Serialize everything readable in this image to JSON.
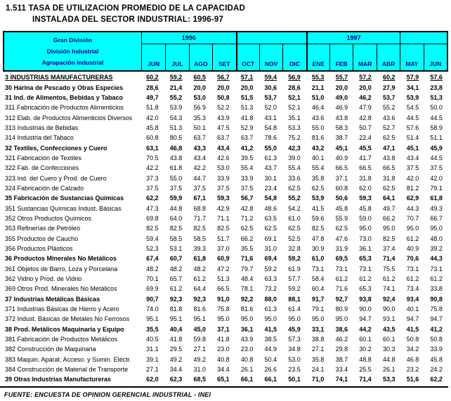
{
  "title": {
    "line1": "1.511 TASA DE UTILIZACION PROMEDIO DE LA CAPACIDAD",
    "line2": "INSTALADA DEL SECTOR INDUSTRIAL: 1996-97"
  },
  "header": {
    "stub_lines": [
      "Gran División",
      "División Industrial",
      "Agrupación Industrial"
    ],
    "year_1996": "1996",
    "year_1997": "1997",
    "months": [
      "JUN",
      "JUL",
      "AGO",
      "SET",
      "OCT",
      "NOV",
      "DIC",
      "ENE",
      "FEB",
      "MAR",
      "ABR",
      "MAY",
      "JUN"
    ]
  },
  "colors": {
    "header_bg": "#00FFFF",
    "header_text": "#000080",
    "body_text": "#000000"
  },
  "footer": {
    "source": "FUENTE: ENCUESTA DE OPINION GERENCIAL INDUSTRIAL - INEI"
  },
  "chart_data": {
    "type": "table",
    "title": "1.511 TASA DE UTILIZACION PROMEDIO DE LA CAPACIDAD INSTALADA DEL SECTOR INDUSTRIAL: 1996-97",
    "column_groups": [
      {
        "label": "1996",
        "cols": 7
      },
      {
        "label": "1997",
        "cols": 6
      }
    ],
    "columns": [
      "JUN",
      "JUL",
      "AGO",
      "SET",
      "OCT",
      "NOV",
      "DIC",
      "ENE",
      "FEB",
      "MAR",
      "ABR",
      "MAY",
      "JUN"
    ],
    "rows": [
      {
        "label": "3 INDUSTRIAS MANUFACTURERAS",
        "bold": true,
        "underline": true,
        "values": [
          "60,2",
          "59,2",
          "60,5",
          "56,7",
          "57,1",
          "59,4",
          "56,9",
          "55,3",
          "55,7",
          "57,2",
          "60,2",
          "57,9",
          "57,6"
        ]
      },
      {
        "label": "30 Harina de Pescado y Otras Especies",
        "bold": true,
        "values": [
          "28,6",
          "21,4",
          "20,0",
          "20,0",
          "20,0",
          "30,6",
          "28,6",
          "21,1",
          "20,0",
          "20,0",
          "27,9",
          "34,1",
          "23,8"
        ]
      },
      {
        "label": "31 Ind. de Alimentos, Bebidas y Tabaco",
        "bold": true,
        "values": [
          "49,7",
          "55,2",
          "53,0",
          "50,8",
          "51,5",
          "53,7",
          "52,1",
          "51,0",
          "49,0",
          "46,2",
          "53,7",
          "53,9",
          "51,3"
        ]
      },
      {
        "label": "311 Fabricación de Productos Alimenticios",
        "values": [
          "51.8",
          "53.9",
          "56.9",
          "52.2",
          "51.3",
          "52.0",
          "52.1",
          "46.4",
          "46.9",
          "47.9",
          "55.2",
          "54.5",
          "50.0"
        ]
      },
      {
        "label": "312 Elab. de Productos Alimenticios Diversos",
        "values": [
          "42.0",
          "54.3",
          "35.3",
          "43.9",
          "41.8",
          "43.1",
          "35.1",
          "43.6",
          "43.8",
          "42.8",
          "43.6",
          "44.5",
          "44.5"
        ]
      },
      {
        "label": "313 Industrias de Bebidas",
        "values": [
          "45.8",
          "51.3",
          "50.1",
          "47.5",
          "52.9",
          "54.8",
          "53.3",
          "55.0",
          "58.3",
          "50.7",
          "52.7",
          "57.6",
          "58.9"
        ]
      },
      {
        "label": "314 Industria del Tabaco",
        "values": [
          "60.8",
          "80.5",
          "63.7",
          "63.7",
          "63.7",
          "78.6",
          "75.2",
          "81.6",
          "38.7",
          "22.4",
          "62.5",
          "51.4",
          "51.1"
        ]
      },
      {
        "label": "32 Textiles, Confecciones y Cuero",
        "bold": true,
        "values": [
          "63,1",
          "46,8",
          "43,3",
          "43,4",
          "41,2",
          "55,0",
          "42,3",
          "43,2",
          "45,1",
          "45,5",
          "47,1",
          "45,1",
          "45,9"
        ]
      },
      {
        "label": "321 Fabricación de Textiles",
        "values": [
          "70.5",
          "43.8",
          "43.4",
          "42.6",
          "39.5",
          "61.3",
          "39.0",
          "40.1",
          "40.9",
          "41.7",
          "43.8",
          "43.4",
          "44.5"
        ]
      },
      {
        "label": "322 Fab. de Confecciones",
        "values": [
          "42.2",
          "61.8",
          "42.2",
          "53.0",
          "55.4",
          "43.7",
          "55.4",
          "55.4",
          "66.5",
          "66.5",
          "66.5",
          "37.5",
          "37.5"
        ]
      },
      {
        "label": "323 Ind. del Cuero y  Prod. de Cuero",
        "values": [
          "37.3",
          "55.0",
          "44.7",
          "33.9",
          "33.9",
          "30.1",
          "33.6",
          "35.8",
          "37.1",
          "31.8",
          "31.8",
          "42.0",
          "42.0"
        ]
      },
      {
        "label": "324 Fabricación de Calzado",
        "values": [
          "37.5",
          "37.5",
          "37.5",
          "37.5",
          "37.5",
          "23.4",
          "62.5",
          "62.5",
          "60.8",
          "62.0",
          "62.5",
          "81.2",
          "79.1"
        ]
      },
      {
        "label": "35 Fabricación de Sustancias Químicas",
        "bold": true,
        "values": [
          "62,2",
          "59,9",
          "67,1",
          "59,3",
          "56,7",
          "54,8",
          "55,2",
          "53,9",
          "50,6",
          "59,3",
          "64,1",
          "62,9",
          "61,8"
        ]
      },
      {
        "label": "351 Sustancias Químicas Indust. Básicas",
        "values": [
          "47.3",
          "44.8",
          "68.8",
          "42.9",
          "42.8",
          "48.6",
          "54.2",
          "41.5",
          "45.8",
          "45.8",
          "49.7",
          "44.3",
          "49.3"
        ]
      },
      {
        "label": "352 Otros Productos Químicos",
        "values": [
          "69.8",
          "64.0",
          "71.7",
          "71.1",
          "71.2",
          "63.5",
          "61.0",
          "59.6",
          "55.9",
          "59.0",
          "66.2",
          "70.7",
          "66.7"
        ]
      },
      {
        "label": "353 Refinerías de Petróleo",
        "values": [
          "82.5",
          "82.5",
          "82.5",
          "82.5",
          "62.5",
          "62.5",
          "62.5",
          "82.5",
          "62.5",
          "95.0",
          "95.0",
          "95.0",
          "95.0"
        ]
      },
      {
        "label": "355 Productos de Caucho",
        "values": [
          "59.4",
          "58.5",
          "58.5",
          "51.7",
          "66.2",
          "69.1",
          "52.5",
          "47.8",
          "47.6",
          "73.0",
          "82.5",
          "61.2",
          "48.0"
        ]
      },
      {
        "label": "356 Productos Plásticos",
        "values": [
          "52.3",
          "53.1",
          "39.3",
          "37.0",
          "35.5",
          "31.0",
          "32.8",
          "30.9",
          "31.9",
          "36.1",
          "37.4",
          "40.9",
          "39.2"
        ]
      },
      {
        "label": "36 Productos Minerales No Metálicos",
        "bold": true,
        "values": [
          "67,4",
          "60,7",
          "61,8",
          "60,9",
          "71,6",
          "69,4",
          "59,2",
          "61,0",
          "69,5",
          "65,3",
          "71,4",
          "70,6",
          "44,3"
        ]
      },
      {
        "label": "361 Objetos de Barro, Loza y Porcelana",
        "values": [
          "48.2",
          "48.2",
          "48.2",
          "47.2",
          "79.7",
          "59.2",
          "61.9",
          "73.1",
          "73.1",
          "73.1",
          "75.5",
          "73.1",
          "73.1"
        ]
      },
      {
        "label": "362 Vidrio y Prod. de Vidrio",
        "values": [
          "70.1",
          "65.7",
          "61.2",
          "51.3",
          "48.4",
          "63.3",
          "57.7",
          "58.4",
          "61.2",
          "61.2",
          "61.2",
          "61.2",
          "61.2"
        ]
      },
      {
        "label": "369 Otros Prod. Minerales No Metálicos",
        "values": [
          "69.9",
          "61.2",
          "64.4",
          "66.5",
          "78.1",
          "73.2",
          "59.2",
          "60.4",
          "71.6",
          "65.3",
          "74.1",
          "73.4",
          "33.8"
        ]
      },
      {
        "label": "37 Industrias Metálicas Básicas",
        "bold": true,
        "values": [
          "90,7",
          "92,3",
          "92,3",
          "91,0",
          "92,2",
          "88,0",
          "88,1",
          "91,7",
          "92,7",
          "93,8",
          "92,4",
          "93,4",
          "90,8"
        ]
      },
      {
        "label": "371 Industrias Básicas de Hierro y Acero",
        "values": [
          "74.0",
          "81.8",
          "81.6",
          "75.8",
          "81.6",
          "61.3",
          "61.4",
          "79.1",
          "80.9",
          "90.0",
          "90.0",
          "40.1",
          "75.8"
        ]
      },
      {
        "label": "372 Indust. Básicas de Metales No Ferrosos",
        "values": [
          "95.1",
          "95.1",
          "95.1",
          "95.0",
          "95.0",
          "95.0",
          "95.0",
          "95.0",
          "95.0",
          "94.7",
          "93.1",
          "94.7",
          "94.7"
        ]
      },
      {
        "label": "38 Prod. Metálicos Maquinaria y Equipo",
        "bold": true,
        "values": [
          "35,5",
          "40,4",
          "45,0",
          "37,1",
          "36,1",
          "41,5",
          "45,9",
          "33,1",
          "38,6",
          "44,2",
          "43,5",
          "41,5",
          "41,2"
        ]
      },
      {
        "label": "381 Fabricación de Productos Metálicos",
        "values": [
          "40.5",
          "41.8",
          "59.8",
          "41.8",
          "43.9",
          "38.5",
          "57.3",
          "38.8",
          "46.2",
          "60.1",
          "60.1",
          "50.8",
          "50.8"
        ]
      },
      {
        "label": "382 Construcción de Maquinaria",
        "values": [
          "31.1",
          "29.5",
          "27.1",
          "23.0",
          "23.0",
          "44.9",
          "34.8",
          "27.1",
          "29.8",
          "30.2",
          "30.3",
          "34.2",
          "33.9"
        ]
      },
      {
        "label": "383 Maquin. Aparat. Acceso. y Sumin. Eléctr.",
        "values": [
          "39.1",
          "49.2",
          "49.2",
          "40.8",
          "40.8",
          "50.4",
          "53.0",
          "35.8",
          "38.7",
          "48.8",
          "44.8",
          "46.8",
          "45.8"
        ]
      },
      {
        "label": "384 Construcción de Material de Transporte",
        "values": [
          "27.1",
          "34.4",
          "31.0",
          "34.4",
          "26.1",
          "26.6",
          "23.5",
          "24.1",
          "33.4",
          "25.5",
          "26.1",
          "23.2",
          "24.2"
        ]
      },
      {
        "label": "39 Otras Industrias Manufactureras",
        "bold": true,
        "values": [
          "62,0",
          "62,3",
          "68,5",
          "65,1",
          "66,1",
          "66,1",
          "50,1",
          "71,0",
          "74,1",
          "71,4",
          "53,3",
          "51,6",
          "62,2"
        ]
      }
    ]
  }
}
